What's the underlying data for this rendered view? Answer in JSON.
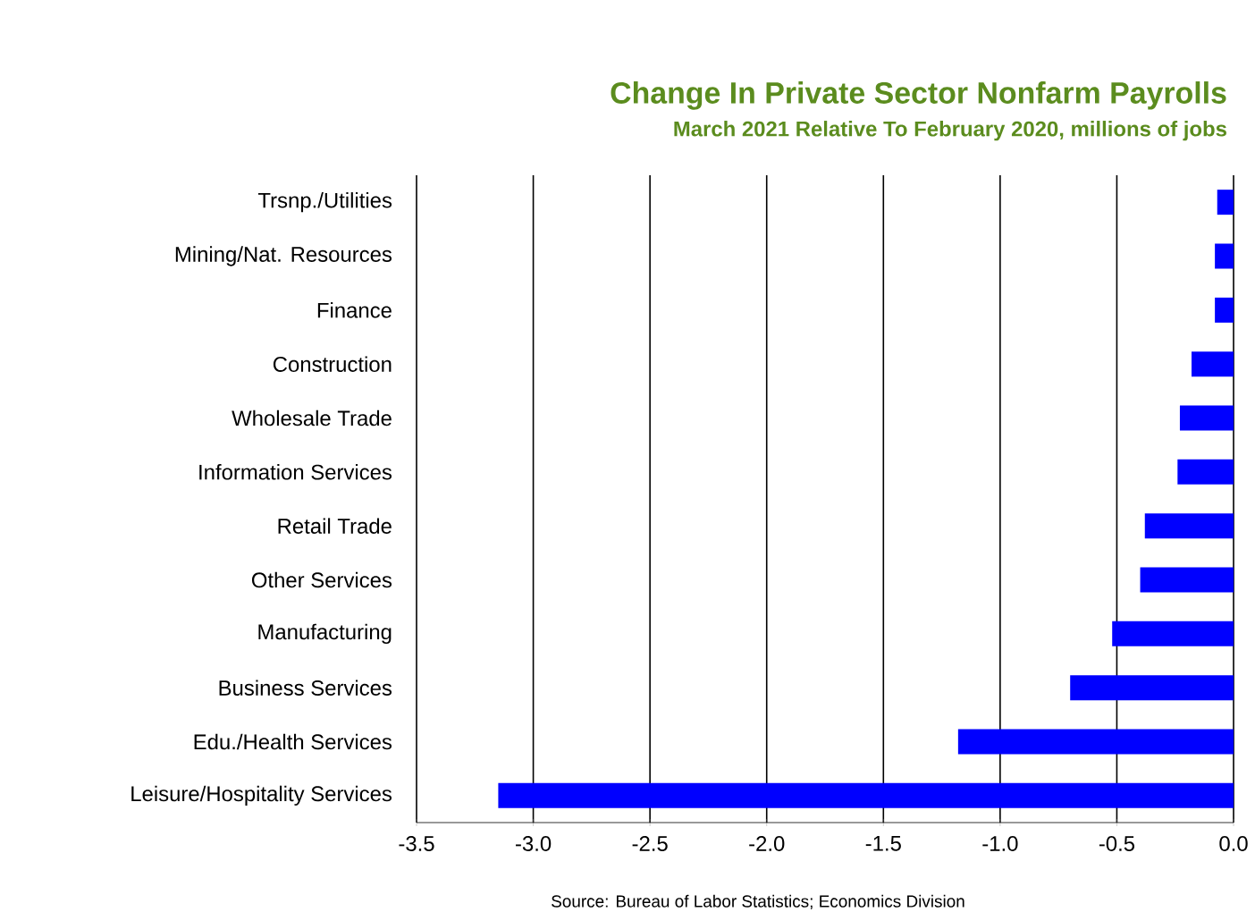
{
  "chart_data": {
    "type": "bar",
    "orientation": "horizontal",
    "title": "Change In Private Sector Nonfarm Payrolls",
    "subtitle": "March 2021 Relative To February 2020, millions of jobs",
    "categories": [
      "Trsnp./Utilities",
      "Mining/Nat. Resources",
      "Finance",
      "Construction",
      "Wholesale Trade",
      "Information Services",
      "Retail Trade",
      "Other Services",
      "Manufacturing",
      "Business Services",
      "Edu./Health Services",
      "Leisure/Hospitality Services"
    ],
    "values": [
      -0.07,
      -0.08,
      -0.08,
      -0.18,
      -0.23,
      -0.24,
      -0.38,
      -0.4,
      -0.52,
      -0.7,
      -1.18,
      -3.15
    ],
    "color": "#0000ff",
    "xlim": [
      -3.5,
      0
    ],
    "xticks": [
      -3.5,
      {
        "value": -3.0,
        "label": "-3.0"
      },
      -2.5,
      {
        "value": -2.0,
        "label": "-2.0"
      },
      -1.5,
      {
        "value": -1.0,
        "label": "-1.0"
      },
      -0.5,
      {
        "value": 0,
        "label": "0.0"
      }
    ],
    "grid": "x",
    "annotations": [
      "Source: Bureau of Labor Statistics; Economics Division"
    ]
  }
}
